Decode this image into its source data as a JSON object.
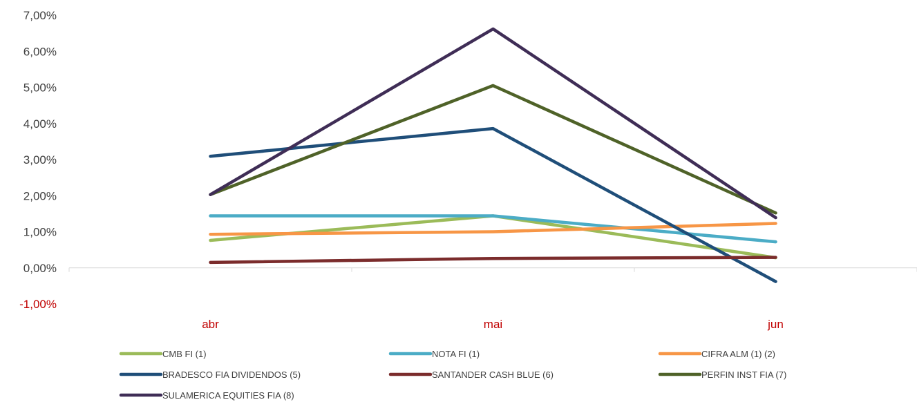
{
  "chart_data": {
    "type": "line",
    "categories": [
      "abr",
      "mai",
      "jun"
    ],
    "y_ticks": [
      "-1,00%",
      "0,00%",
      "1,00%",
      "2,00%",
      "3,00%",
      "4,00%",
      "5,00%",
      "6,00%",
      "7,00%"
    ],
    "ylim": [
      -1,
      7
    ],
    "y_unit": "%",
    "grid": false,
    "legend_position": "bottom",
    "series": [
      {
        "name": "CMB FI (1)",
        "color": "#9bbb59",
        "values": [
          0.76,
          1.44,
          0.28
        ]
      },
      {
        "name": "NOTA FI (1)",
        "color": "#4bacc6",
        "values": [
          1.44,
          1.44,
          0.72
        ]
      },
      {
        "name": "CIFRA ALM (1) (2)",
        "color": "#f79646",
        "values": [
          0.93,
          1.0,
          1.23
        ]
      },
      {
        "name": "BRADESCO FIA DIVIDENDOS (5)",
        "color": "#1f4e79",
        "values": [
          3.09,
          3.86,
          -0.38
        ]
      },
      {
        "name": "SANTANDER CASH BLUE (6)",
        "color": "#7b2c2c",
        "values": [
          0.15,
          0.26,
          0.29
        ]
      },
      {
        "name": "PERFIN INST FIA (7)",
        "color": "#4f6228",
        "values": [
          2.03,
          5.05,
          1.52
        ]
      },
      {
        "name": "SULAMERICA EQUITIES FIA (8)",
        "color": "#3f2d56",
        "values": [
          2.03,
          6.62,
          1.39
        ]
      }
    ]
  }
}
